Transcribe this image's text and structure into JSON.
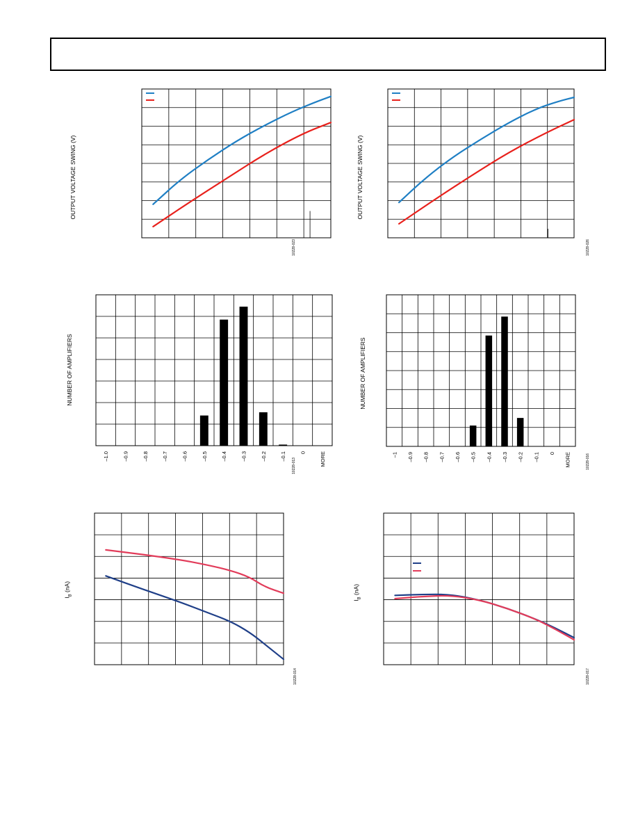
{
  "header": {
    "title": ""
  },
  "chart_data": [
    {
      "id": "c1",
      "type": "line",
      "ylabel": "OUTPUT VOLTAGE SWING (V)",
      "fig_id": "10228-023",
      "grid": true,
      "xlim": [
        0,
        1
      ],
      "ylim": [
        0,
        8
      ],
      "series": [
        {
          "color": "#1f7fc4",
          "x": [
            0.06,
            0.2,
            0.35,
            0.5,
            0.65,
            0.8,
            0.92,
            1.0
          ],
          "y": [
            1.8,
            3.1,
            4.2,
            5.2,
            6.05,
            6.8,
            7.3,
            7.6
          ]
        },
        {
          "color": "#e8211c",
          "x": [
            0.06,
            0.25,
            0.45,
            0.65,
            0.85,
            1.0
          ],
          "y": [
            0.6,
            1.9,
            3.2,
            4.5,
            5.6,
            6.2
          ]
        }
      ]
    },
    {
      "id": "c2",
      "type": "line",
      "ylabel": "OUTPUT VOLTAGE SWING (V)",
      "fig_id": "10228-026",
      "grid": true,
      "xlim": [
        0,
        1
      ],
      "ylim": [
        0,
        8
      ],
      "series": [
        {
          "color": "#1f7fc4",
          "x": [
            0.06,
            0.2,
            0.35,
            0.5,
            0.65,
            0.8,
            0.92,
            1.0
          ],
          "y": [
            1.9,
            3.2,
            4.35,
            5.3,
            6.2,
            6.95,
            7.35,
            7.55
          ]
        },
        {
          "color": "#e8211c",
          "x": [
            0.06,
            0.25,
            0.45,
            0.65,
            0.85,
            1.0
          ],
          "y": [
            0.75,
            2.05,
            3.35,
            4.6,
            5.65,
            6.35
          ]
        }
      ]
    },
    {
      "id": "c3",
      "type": "bar",
      "ylabel": "NUMBER OF AMPLIFIERS",
      "fig_id": "10228-013",
      "categories": [
        "–1.0",
        "–0.9",
        "–0.8",
        "–0.7",
        "–0.6",
        "–0.5",
        "–0.4",
        "–0.3",
        "–0.2",
        "–0.1",
        "0",
        "MORE"
      ],
      "values": [
        0,
        0,
        0,
        0,
        0,
        28,
        117,
        129,
        31,
        1,
        0,
        0
      ],
      "ylim": [
        0,
        140
      ],
      "ygrid_count": 7
    },
    {
      "id": "c4",
      "type": "bar",
      "ylabel": "NUMBER OF AMPLIFIERS",
      "fig_id": "10228-016",
      "categories": [
        "–1",
        "–0.9",
        "–0.8",
        "–0.7",
        "–0.6",
        "–0.5",
        "–0.4",
        "–0.3",
        "–0.2",
        "–0.1",
        "0",
        "MORE"
      ],
      "values": [
        0,
        0,
        0,
        0,
        0,
        22,
        117,
        137,
        30,
        0,
        0,
        0
      ],
      "ylim": [
        0,
        160
      ],
      "ygrid_count": 8
    },
    {
      "id": "c5",
      "type": "line",
      "ylabel": "I",
      "ylabel_sub": "B",
      "ylabel_unit": " (nA)",
      "fig_id": "10228-014",
      "grid": true,
      "xlim": [
        0,
        1
      ],
      "ylim": [
        0,
        7
      ],
      "series": [
        {
          "color": "#1f3f88",
          "x": [
            0.06,
            0.25,
            0.45,
            0.6,
            0.72,
            0.82,
            0.9,
            1.0
          ],
          "y": [
            4.1,
            3.5,
            2.9,
            2.4,
            2.0,
            1.5,
            0.95,
            0.25
          ]
        },
        {
          "color": "#e23c5a",
          "x": [
            0.06,
            0.25,
            0.45,
            0.6,
            0.72,
            0.82,
            0.9,
            1.0
          ],
          "y": [
            5.3,
            5.1,
            4.85,
            4.6,
            4.35,
            4.05,
            3.6,
            3.3
          ]
        }
      ]
    },
    {
      "id": "c6",
      "type": "line",
      "ylabel": "I",
      "ylabel_sub": "B",
      "ylabel_unit": " (nA)",
      "fig_id": "10228-017",
      "grid": true,
      "xlim": [
        0,
        1
      ],
      "ylim": [
        0,
        7
      ],
      "series": [
        {
          "color": "#1f3f88",
          "x": [
            0.06,
            0.2,
            0.35,
            0.5,
            0.65,
            0.8,
            0.9,
            1.0
          ],
          "y": [
            3.2,
            3.25,
            3.25,
            3.0,
            2.6,
            2.1,
            1.7,
            1.25
          ]
        },
        {
          "color": "#e23c5a",
          "x": [
            0.06,
            0.2,
            0.35,
            0.5,
            0.65,
            0.8,
            0.9,
            1.0
          ],
          "y": [
            3.05,
            3.15,
            3.2,
            3.0,
            2.6,
            2.1,
            1.65,
            1.15
          ]
        }
      ]
    }
  ]
}
